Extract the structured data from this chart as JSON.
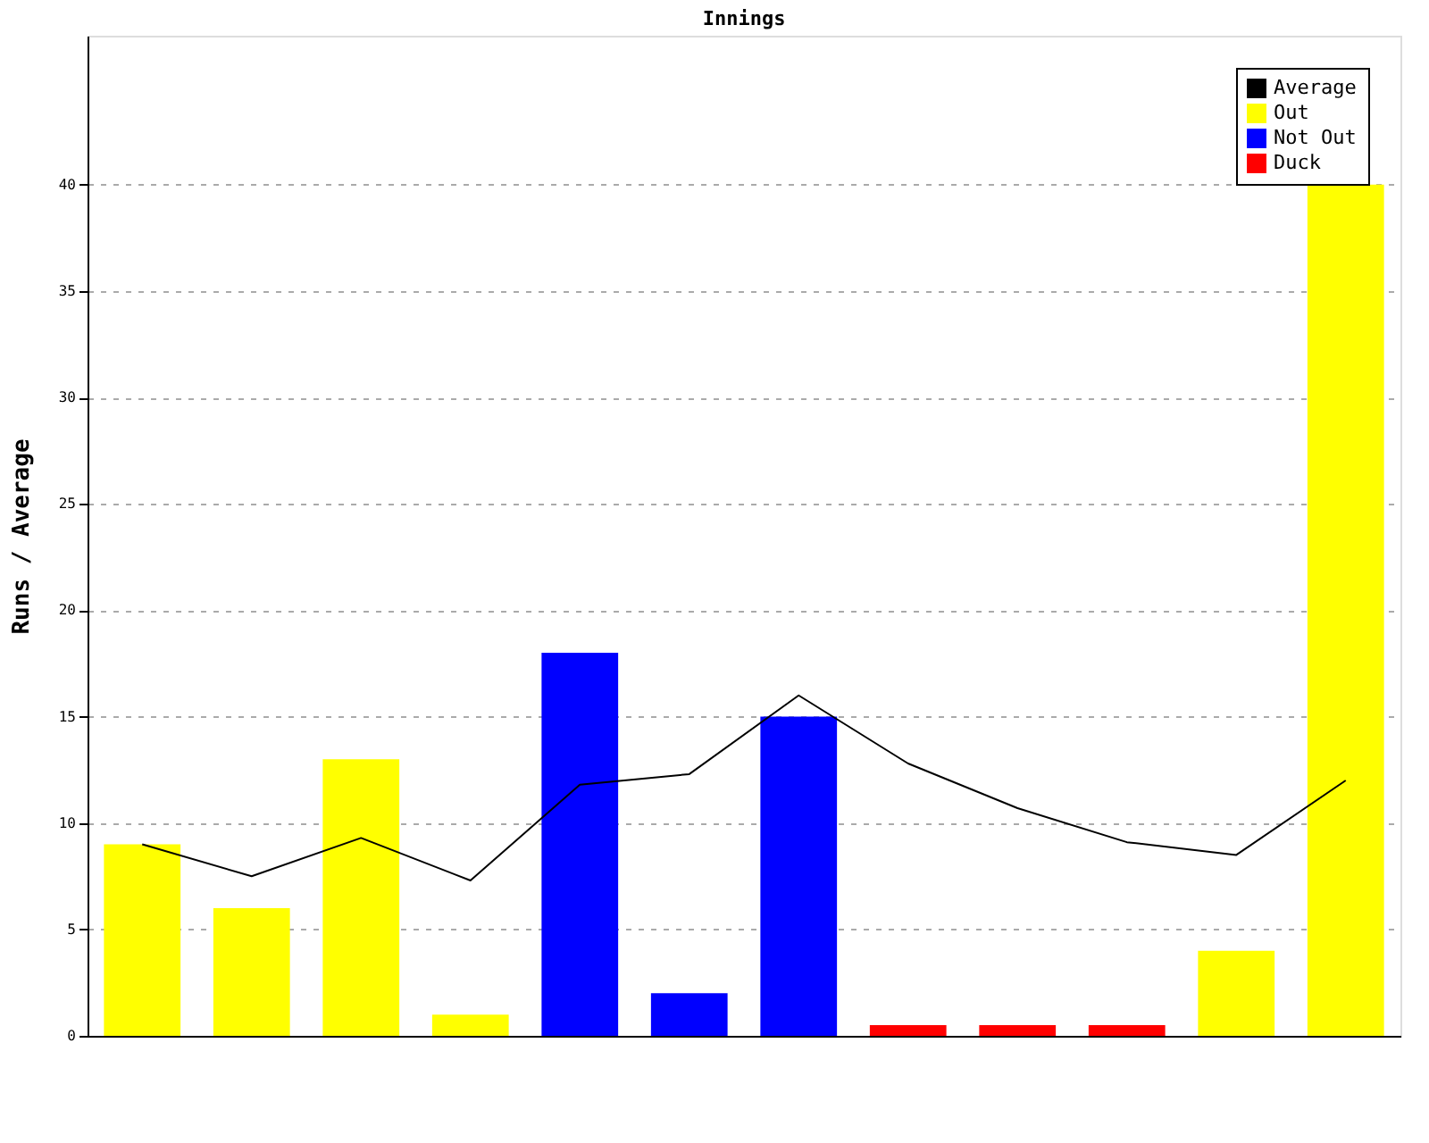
{
  "chart_data": {
    "type": "bar",
    "title": "Innings",
    "ylabel": "Runs / Average",
    "categories": [
      null,
      null,
      null,
      null,
      null,
      null,
      null,
      null,
      null,
      null,
      null,
      null
    ],
    "series": [
      {
        "name": "Average",
        "type": "line",
        "color": "#000000",
        "values": [
          9,
          7.5,
          9.3,
          7.3,
          11.8,
          12.3,
          16,
          12.8,
          10.7,
          9.1,
          8.5,
          12
        ]
      },
      {
        "name": "Out",
        "color": "#ffff00",
        "values": [
          9,
          6,
          13,
          1,
          null,
          null,
          null,
          null,
          null,
          null,
          4,
          40
        ]
      },
      {
        "name": "Not Out",
        "color": "#0000ff",
        "values": [
          null,
          null,
          null,
          null,
          18,
          2,
          15,
          null,
          null,
          null,
          null,
          null
        ]
      },
      {
        "name": "Duck",
        "color": "#ff0000",
        "values": [
          null,
          null,
          null,
          null,
          null,
          null,
          null,
          0.5,
          0.5,
          0.5,
          null,
          null
        ]
      }
    ],
    "ylim": [
      0,
      47
    ],
    "yticks": [
      0,
      5,
      10,
      15,
      20,
      25,
      30,
      35,
      40
    ],
    "grid": "y",
    "legend": "top right"
  }
}
